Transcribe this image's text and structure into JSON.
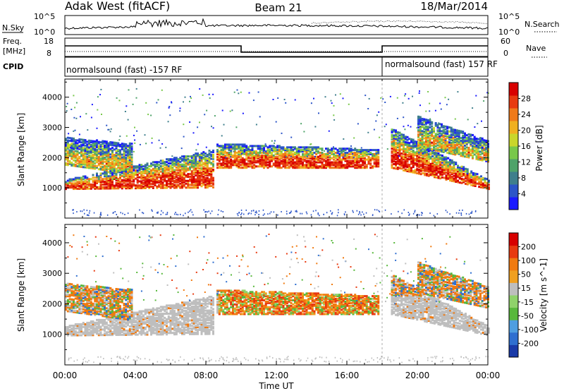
{
  "header": {
    "station": "Adak West (fitACF)",
    "beam": "Beam 21",
    "date": "18/Mar/2014"
  },
  "noise_panel": {
    "left_label": "N.Sky",
    "right_label": "N.Search",
    "left_ticks": [
      "10^5",
      "10^0"
    ],
    "right_ticks": [
      "10^5",
      "10^0"
    ]
  },
  "freq_panel": {
    "left_label_1": "Freq.",
    "left_label_2": "[MHz]",
    "left_ticks": [
      "18",
      "8"
    ],
    "right_label": "Nave",
    "right_ticks": [
      "60",
      "0"
    ]
  },
  "cpid_panel": {
    "label": "CPID",
    "segments": [
      "normalsound (fast) -157 RF",
      "normalsound (fast) 157 RF"
    ]
  },
  "chart_data": [
    {
      "type": "heatmap",
      "panel": "power",
      "ylabel": "Slant Range [km]",
      "yticks": [
        1000,
        2000,
        3000,
        4000
      ],
      "ylim": [
        0,
        4600
      ],
      "xlim_hours": [
        0,
        24
      ],
      "colorbar": {
        "label": "Power [dB]",
        "ticks": [
          "28",
          "24",
          "20",
          "16",
          "12",
          "8",
          "4"
        ],
        "colors": [
          "#1a1aff",
          "#2c55c8",
          "#3f7f8c",
          "#4fa36a",
          "#78c84a",
          "#c9d62b",
          "#f0b020",
          "#f07a1a",
          "#e83a10",
          "#d80000"
        ]
      },
      "bands": [
        {
          "t": [
            0.0,
            8.4
          ],
          "range_start": [
            1000,
            1300
          ],
          "range_end": [
            1050,
            2300
          ],
          "value": "high"
        },
        {
          "t": [
            0.0,
            3.8
          ],
          "range_start": [
            1800,
            2700
          ],
          "range_end": [
            1500,
            2500
          ],
          "value": "mid"
        },
        {
          "t": [
            8.6,
            17.8
          ],
          "range_start": [
            1700,
            2500
          ],
          "range_end": [
            1700,
            2300
          ],
          "value": "high"
        },
        {
          "t": [
            18.5,
            24.0
          ],
          "range_start": [
            1700,
            3000
          ],
          "range_end": [
            1000,
            1300
          ],
          "value": "high"
        },
        {
          "t": [
            20.0,
            24.0
          ],
          "range_start": [
            2400,
            3400
          ],
          "range_end": [
            1900,
            2600
          ],
          "value": "mid"
        }
      ]
    },
    {
      "type": "heatmap",
      "panel": "velocity",
      "ylabel": "Slant Range [km]",
      "yticks": [
        1000,
        2000,
        3000,
        4000
      ],
      "ylim": [
        0,
        4600
      ],
      "xlim_hours": [
        0,
        24
      ],
      "xticks": [
        "00:00",
        "04:00",
        "08:00",
        "12:00",
        "16:00",
        "20:00",
        "00:00"
      ],
      "xlabel": "Time UT",
      "colorbar": {
        "label": "Velocity [m s^-1]",
        "ticks": [
          "200",
          "100",
          "50",
          "15",
          "-15",
          "-50",
          "-100",
          "-200"
        ],
        "colors": [
          "#1a3aa8",
          "#2f6fd0",
          "#4f9ee0",
          "#58b83c",
          "#8fd26a",
          "#bebebe",
          "#f0a020",
          "#f07a10",
          "#e83a10",
          "#d80000"
        ]
      }
    }
  ]
}
